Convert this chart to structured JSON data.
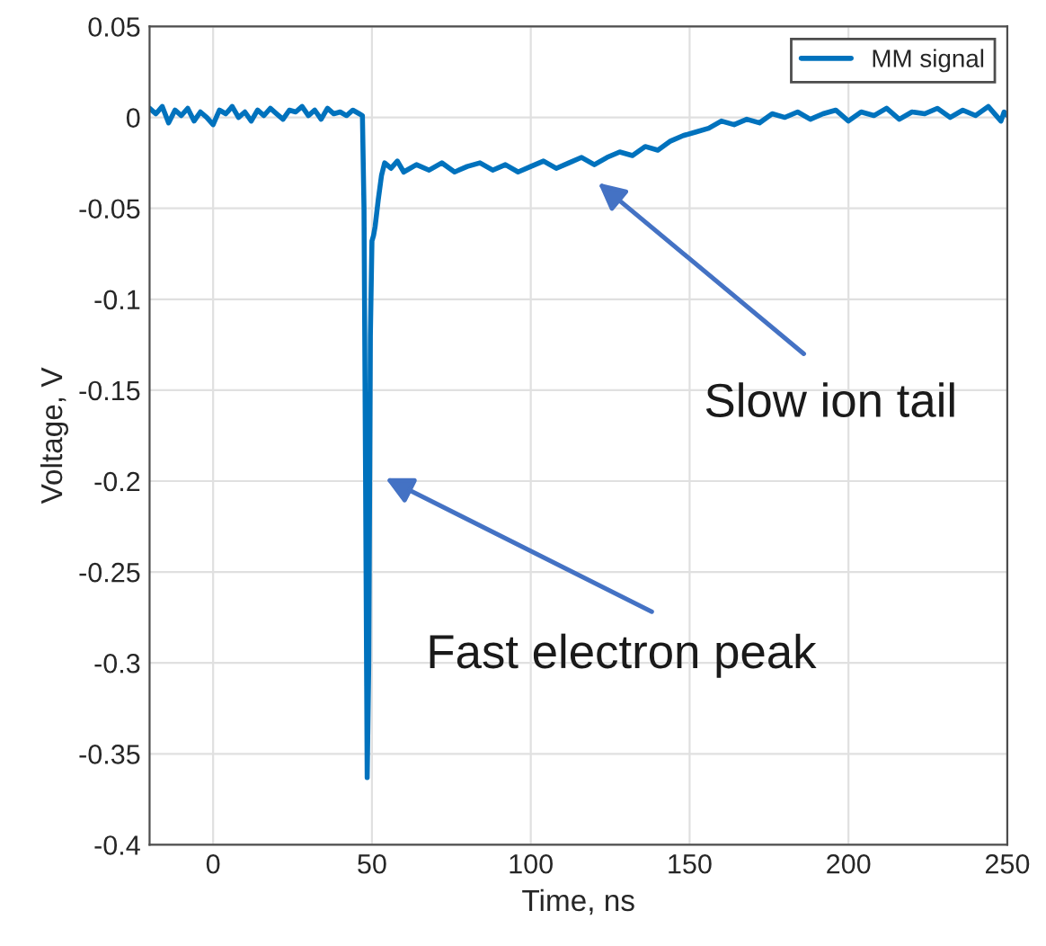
{
  "chart_data": {
    "type": "line",
    "xlabel": "Time, ns",
    "ylabel": "Voltage, V",
    "xlim": [
      -20,
      250
    ],
    "ylim": [
      -0.4,
      0.05
    ],
    "xticks": [
      0,
      50,
      100,
      150,
      200,
      250
    ],
    "yticks": [
      -0.4,
      -0.35,
      -0.3,
      -0.25,
      -0.2,
      -0.15,
      -0.1,
      -0.05,
      0,
      0.05
    ],
    "grid": true,
    "legend": "top right",
    "annotations": [
      "Slow ion tail",
      "Fast electron peak"
    ],
    "series": [
      {
        "name": "MM signal",
        "color": "#0072bd",
        "x": [
          -20,
          -18,
          -16,
          -14,
          -12,
          -10,
          -8,
          -6,
          -4,
          -2,
          0,
          2,
          4,
          6,
          8,
          10,
          12,
          14,
          16,
          18,
          20,
          22,
          24,
          26,
          28,
          30,
          32,
          34,
          36,
          38,
          40,
          42,
          44,
          46,
          47,
          47.5,
          48,
          48.5,
          49,
          49.5,
          50,
          50.5,
          51,
          52,
          53,
          54,
          56,
          58,
          60,
          64,
          68,
          72,
          76,
          80,
          84,
          88,
          92,
          96,
          100,
          104,
          108,
          112,
          116,
          120,
          124,
          128,
          132,
          136,
          140,
          144,
          148,
          152,
          156,
          160,
          164,
          168,
          172,
          176,
          180,
          184,
          188,
          192,
          196,
          200,
          204,
          208,
          212,
          216,
          220,
          224,
          228,
          232,
          236,
          240,
          244,
          248,
          249,
          250
        ],
        "values": [
          0.005,
          0.002,
          0.006,
          -0.003,
          0.004,
          0.001,
          0.005,
          -0.002,
          0.003,
          0.0,
          -0.004,
          0.004,
          0.002,
          0.006,
          0.0,
          0.003,
          -0.002,
          0.004,
          0.001,
          0.005,
          0.002,
          -0.001,
          0.004,
          0.003,
          0.006,
          0.001,
          0.004,
          -0.001,
          0.005,
          0.002,
          0.003,
          0.001,
          0.004,
          0.002,
          0.001,
          -0.05,
          -0.2,
          -0.363,
          -0.3,
          -0.12,
          -0.068,
          -0.065,
          -0.06,
          -0.045,
          -0.032,
          -0.025,
          -0.028,
          -0.024,
          -0.03,
          -0.026,
          -0.029,
          -0.025,
          -0.03,
          -0.027,
          -0.025,
          -0.029,
          -0.026,
          -0.03,
          -0.027,
          -0.024,
          -0.028,
          -0.025,
          -0.022,
          -0.026,
          -0.022,
          -0.019,
          -0.021,
          -0.016,
          -0.018,
          -0.013,
          -0.01,
          -0.008,
          -0.006,
          -0.002,
          -0.004,
          -0.001,
          -0.003,
          0.002,
          0.0,
          0.003,
          -0.001,
          0.002,
          0.004,
          -0.002,
          0.003,
          0.001,
          0.005,
          -0.001,
          0.003,
          0.002,
          0.005,
          0.0,
          0.004,
          0.001,
          0.006,
          -0.002,
          0.003,
          0.001
        ]
      }
    ]
  }
}
